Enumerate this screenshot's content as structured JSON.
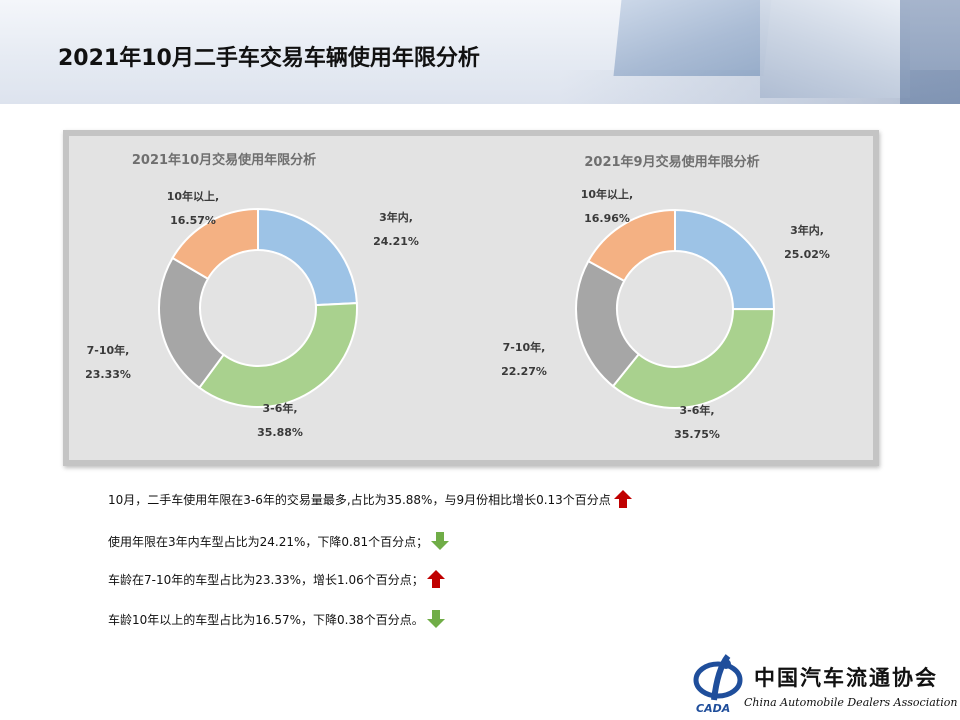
{
  "title": "2021年10月二手车交易车辆使用年限分析",
  "colors": {
    "seg_3yr": "#9dc3e6",
    "seg_3to6": "#a9d18e",
    "seg_7to10": "#a6a6a6",
    "seg_10plus": "#f4b183",
    "arrow_up": "#c00000",
    "arrow_down": "#70ad47"
  },
  "chart_data": [
    {
      "type": "pie",
      "donut": true,
      "title": "2021年10月交易使用年限分析",
      "slices": [
        {
          "label": "3年内,",
          "value": 24.21,
          "value_label": "24.21%"
        },
        {
          "label": "3-6年,",
          "value": 35.88,
          "value_label": "35.88%"
        },
        {
          "label": "7-10年,",
          "value": 23.33,
          "value_label": "23.33%"
        },
        {
          "label": "10年以上,",
          "value": 16.57,
          "value_label": "16.57%"
        }
      ]
    },
    {
      "type": "pie",
      "donut": true,
      "title": "2021年9月交易使用年限分析",
      "slices": [
        {
          "label": "3年内,",
          "value": 25.02,
          "value_label": "25.02%"
        },
        {
          "label": "3-6年,",
          "value": 35.75,
          "value_label": "35.75%"
        },
        {
          "label": "7-10年,",
          "value": 22.27,
          "value_label": "22.27%"
        },
        {
          "label": "10年以上,",
          "value": 16.96,
          "value_label": "16.96%"
        }
      ]
    }
  ],
  "notes": [
    {
      "text": "10月，二手车使用年限在3-6年的交易量最多,占比为35.88%，与9月份相比增长0.13个百分点",
      "trend": "up"
    },
    {
      "text": "使用年限在3年内车型占比为24.21%，下降0.81个百分点；",
      "trend": "down"
    },
    {
      "text": "车龄在7-10年的车型占比为23.33%，增长1.06个百分点；",
      "trend": "up"
    },
    {
      "text": "车龄10年以上的车型占比为16.57%，下降0.38个百分点。",
      "trend": "down"
    }
  ],
  "logo": {
    "abbr": "CADA",
    "name_cn": "中国汽车流通协会",
    "name_en": "China Automobile Dealers Association"
  }
}
